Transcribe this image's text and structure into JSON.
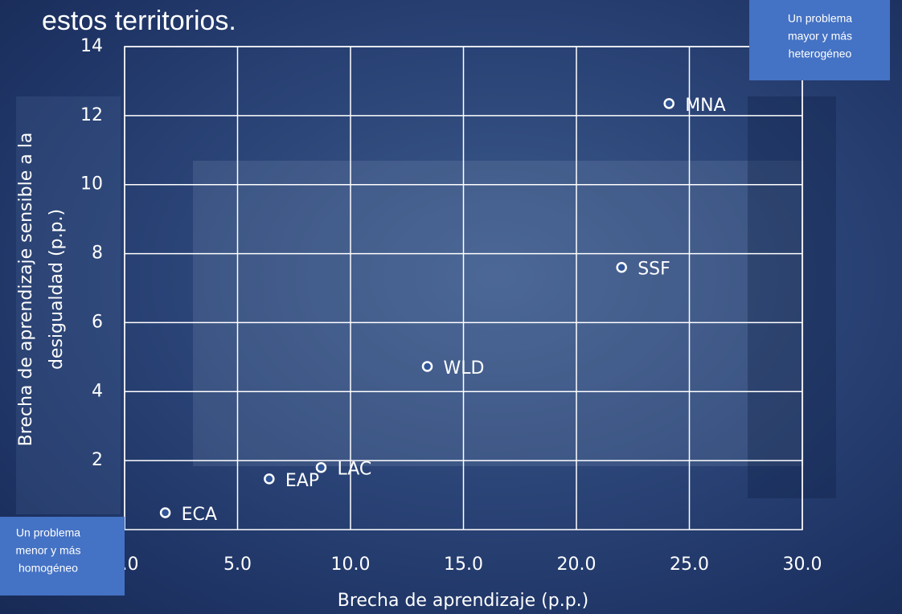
{
  "chart_data": {
    "type": "scatter",
    "title": "estos territorios.",
    "x_label": "Brecha de aprendizaje (p.p.)",
    "y_label": [
      "Brecha de aprendizaje sensible a la",
      "desigualdad (p.p.)"
    ],
    "xlim": [
      0,
      30
    ],
    "ylim": [
      0,
      14
    ],
    "xticks": [
      {
        "value": 0,
        "label": "0.0"
      },
      {
        "value": 5,
        "label": "5.0"
      },
      {
        "value": 10,
        "label": "10.0"
      },
      {
        "value": 15,
        "label": "15.0"
      },
      {
        "value": 20,
        "label": "20.0"
      },
      {
        "value": 25,
        "label": "25.0"
      },
      {
        "value": 30,
        "label": "30.0"
      }
    ],
    "yticks": [
      2,
      4,
      6,
      8,
      10,
      12,
      14
    ],
    "grid": true,
    "series": [
      {
        "color": "#2f5597",
        "x": [
          24.1,
          22.0,
          13.4,
          8.7,
          6.4,
          1.8
        ],
        "values": [
          12.35,
          7.6,
          4.73,
          1.8,
          1.47,
          0.49
        ],
        "point_labels": [
          "MNA",
          "SSF",
          "WLD",
          "LAC",
          "EAP",
          "ECA"
        ]
      }
    ],
    "annotations": [
      {
        "position": "top-right",
        "lines": [
          "Un problema",
          "mayor y más",
          "heterogéneo"
        ]
      },
      {
        "position": "bottom-left",
        "lines": [
          "Un problema",
          "menor y más",
          "homogéneo"
        ]
      }
    ],
    "annotation_color": "#4472c4"
  }
}
